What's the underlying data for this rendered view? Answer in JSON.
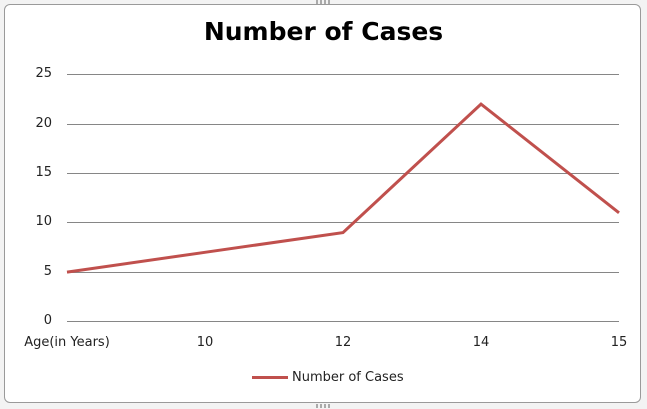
{
  "chart_data": {
    "type": "line",
    "title": "Number of Cases",
    "categories": [
      "Age(in Years)",
      "10",
      "12",
      "14",
      "15"
    ],
    "series": [
      {
        "name": "Number of Cases",
        "values": [
          5,
          7,
          9,
          22,
          11
        ],
        "color": "#c0504d"
      }
    ],
    "xlabel": "",
    "ylabel": "",
    "ylim": [
      0,
      25
    ],
    "yticks": [
      "0",
      "5",
      "10",
      "15",
      "20",
      "25"
    ],
    "grid": true,
    "legend_position": "bottom"
  },
  "chart": {
    "title": "Number of Cases",
    "legend_label": "Number of Cases",
    "y_ticks": {
      "t0": "0",
      "t5": "5",
      "t10": "10",
      "t15": "15",
      "t20": "20",
      "t25": "25"
    },
    "x_ticks": {
      "c0": "Age(in Years)",
      "c1": "10",
      "c2": "12",
      "c3": "14",
      "c4": "15"
    }
  }
}
